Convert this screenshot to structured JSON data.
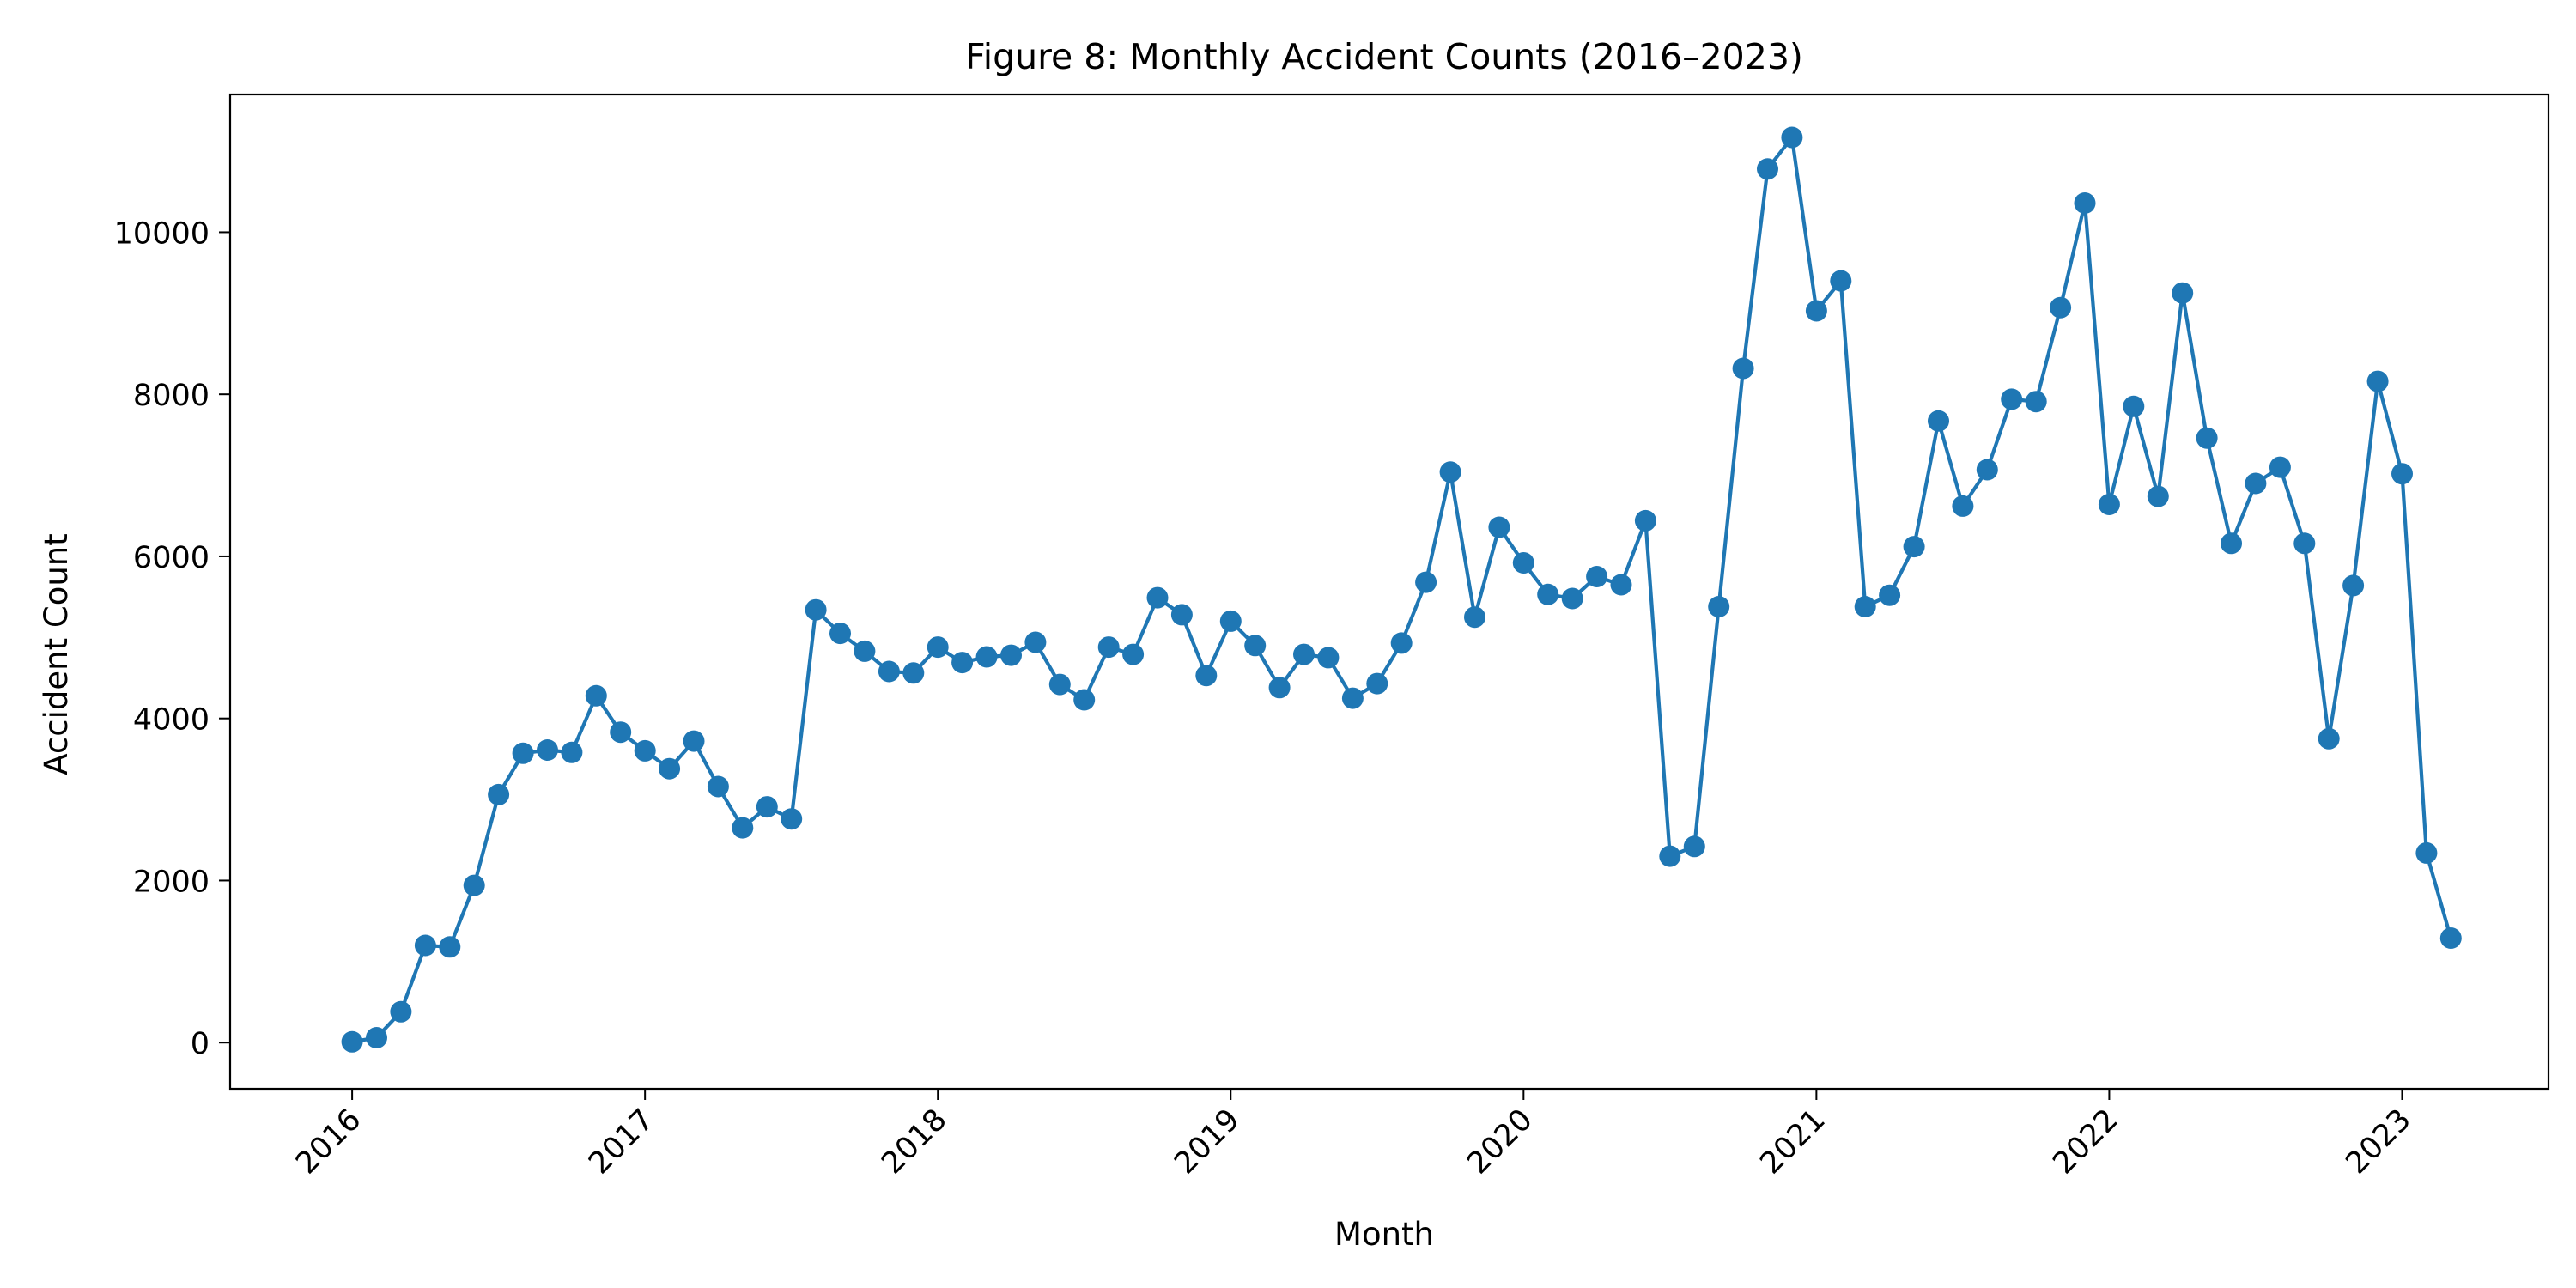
{
  "chart_data": {
    "type": "line",
    "title": "Figure 8: Monthly Accident Counts (2016–2023)",
    "xlabel": "Month",
    "ylabel": "Accident Count",
    "x_tick_labels": [
      "2016",
      "2017",
      "2018",
      "2019",
      "2020",
      "2021",
      "2022",
      "2023"
    ],
    "y_ticks": [
      0,
      2000,
      4000,
      6000,
      8000,
      10000
    ],
    "xlim": [
      "2015-08",
      "2023-07"
    ],
    "ylim": [
      -570,
      11700
    ],
    "grid": false,
    "legend": "none",
    "series_color": "#1f77b4",
    "x": [
      "2016-01",
      "2016-02",
      "2016-03",
      "2016-04",
      "2016-05",
      "2016-06",
      "2016-07",
      "2016-08",
      "2016-09",
      "2016-10",
      "2016-11",
      "2016-12",
      "2017-01",
      "2017-02",
      "2017-03",
      "2017-04",
      "2017-05",
      "2017-06",
      "2017-07",
      "2017-08",
      "2017-09",
      "2017-10",
      "2017-11",
      "2017-12",
      "2018-01",
      "2018-02",
      "2018-03",
      "2018-04",
      "2018-05",
      "2018-06",
      "2018-07",
      "2018-08",
      "2018-09",
      "2018-10",
      "2018-11",
      "2018-12",
      "2019-01",
      "2019-02",
      "2019-03",
      "2019-04",
      "2019-05",
      "2019-06",
      "2019-07",
      "2019-08",
      "2019-09",
      "2019-10",
      "2019-11",
      "2019-12",
      "2020-01",
      "2020-02",
      "2020-03",
      "2020-04",
      "2020-05",
      "2020-06",
      "2020-07",
      "2020-08",
      "2020-09",
      "2020-10",
      "2020-11",
      "2020-12",
      "2021-01",
      "2021-02",
      "2021-03",
      "2021-04",
      "2021-05",
      "2021-06",
      "2021-07",
      "2021-08",
      "2021-09",
      "2021-10",
      "2021-11",
      "2021-12",
      "2022-01",
      "2022-02",
      "2022-03",
      "2022-04",
      "2022-05",
      "2022-06",
      "2022-07",
      "2022-08",
      "2022-09",
      "2022-10",
      "2022-11",
      "2022-12",
      "2023-01",
      "2023-02",
      "2023-03"
    ],
    "values": [
      10,
      60,
      380,
      1200,
      1180,
      1940,
      3060,
      3570,
      3610,
      3580,
      4280,
      3830,
      3600,
      3380,
      3720,
      3160,
      2650,
      2910,
      2760,
      5340,
      5050,
      4830,
      4580,
      4560,
      4880,
      4690,
      4760,
      4780,
      4940,
      4420,
      4230,
      4880,
      4790,
      5490,
      5280,
      4530,
      5200,
      4900,
      4380,
      4790,
      4750,
      4250,
      4430,
      4930,
      5680,
      7040,
      5250,
      6360,
      5920,
      5530,
      5480,
      5750,
      5650,
      6440,
      2300,
      2420,
      5380,
      8320,
      10780,
      11170,
      9030,
      9400,
      5380,
      5520,
      6120,
      7670,
      6620,
      7070,
      7940,
      7910,
      9070,
      10360,
      6640,
      7850,
      6740,
      9250,
      7460,
      6160,
      6900,
      7100,
      6160,
      3750,
      5640,
      8160,
      7020,
      2340,
      1290
    ]
  }
}
